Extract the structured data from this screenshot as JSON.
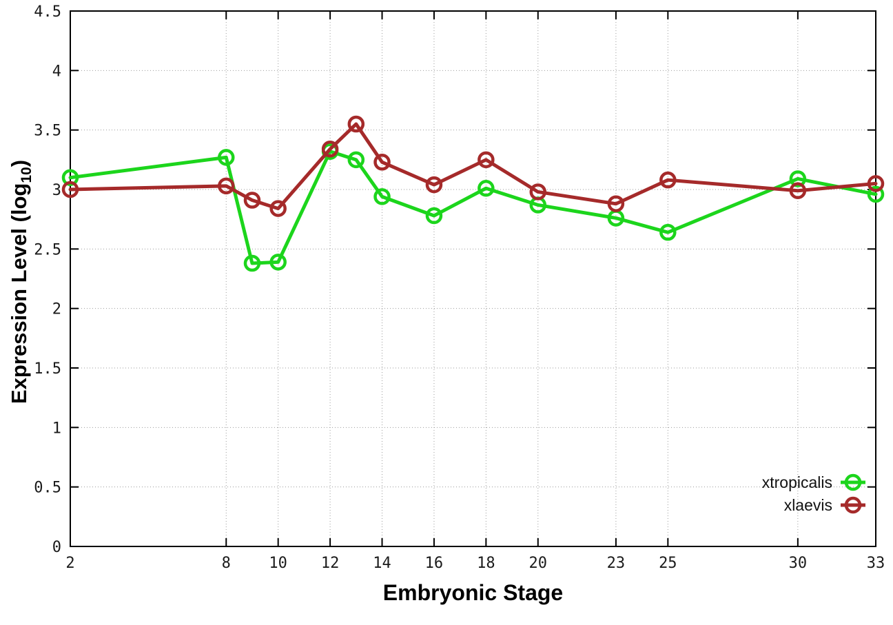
{
  "chart_data": {
    "type": "line",
    "title": "",
    "xlabel": "Embryonic Stage",
    "ylabel": "Expression Level (log10)",
    "ylabel_parts": {
      "main": "Expression Level (log",
      "sub": "10",
      "close": ")"
    },
    "x": [
      2,
      8,
      9,
      10,
      12,
      13,
      14,
      16,
      18,
      20,
      23,
      25,
      30,
      33
    ],
    "xlim": [
      2,
      33
    ],
    "ylim": [
      0,
      4.5
    ],
    "xticks": [
      2,
      8,
      10,
      12,
      14,
      16,
      18,
      20,
      23,
      25,
      30,
      33
    ],
    "xtick_labels": [
      "2",
      "8",
      "10",
      "12",
      "14",
      "16",
      "18",
      "20",
      "23",
      "25",
      "30",
      "33"
    ],
    "yticks": [
      0,
      0.5,
      1,
      1.5,
      2,
      2.5,
      3,
      3.5,
      4,
      4.5
    ],
    "ytick_labels": [
      "0",
      "0.5",
      "1",
      "1.5",
      "2",
      "2.5",
      "3",
      "3.5",
      "4",
      "4.5"
    ],
    "grid": true,
    "legend_position": "inside-bottom-right",
    "series": [
      {
        "name": "xtropicalis",
        "color": "#1cd51c",
        "marker": "open-circle",
        "values": [
          3.1,
          3.27,
          2.38,
          2.39,
          3.32,
          3.25,
          2.94,
          2.78,
          3.01,
          2.87,
          2.76,
          2.64,
          3.09,
          2.96
        ]
      },
      {
        "name": "xlaevis",
        "color": "#a52a2a",
        "marker": "open-circle",
        "values": [
          3.0,
          3.03,
          2.91,
          2.84,
          3.34,
          3.55,
          3.23,
          3.04,
          3.25,
          2.98,
          2.88,
          3.08,
          2.99,
          3.05
        ]
      }
    ],
    "colors": {
      "axis": "#000000",
      "grid": "#9a9a9a",
      "background": "#ffffff"
    }
  }
}
